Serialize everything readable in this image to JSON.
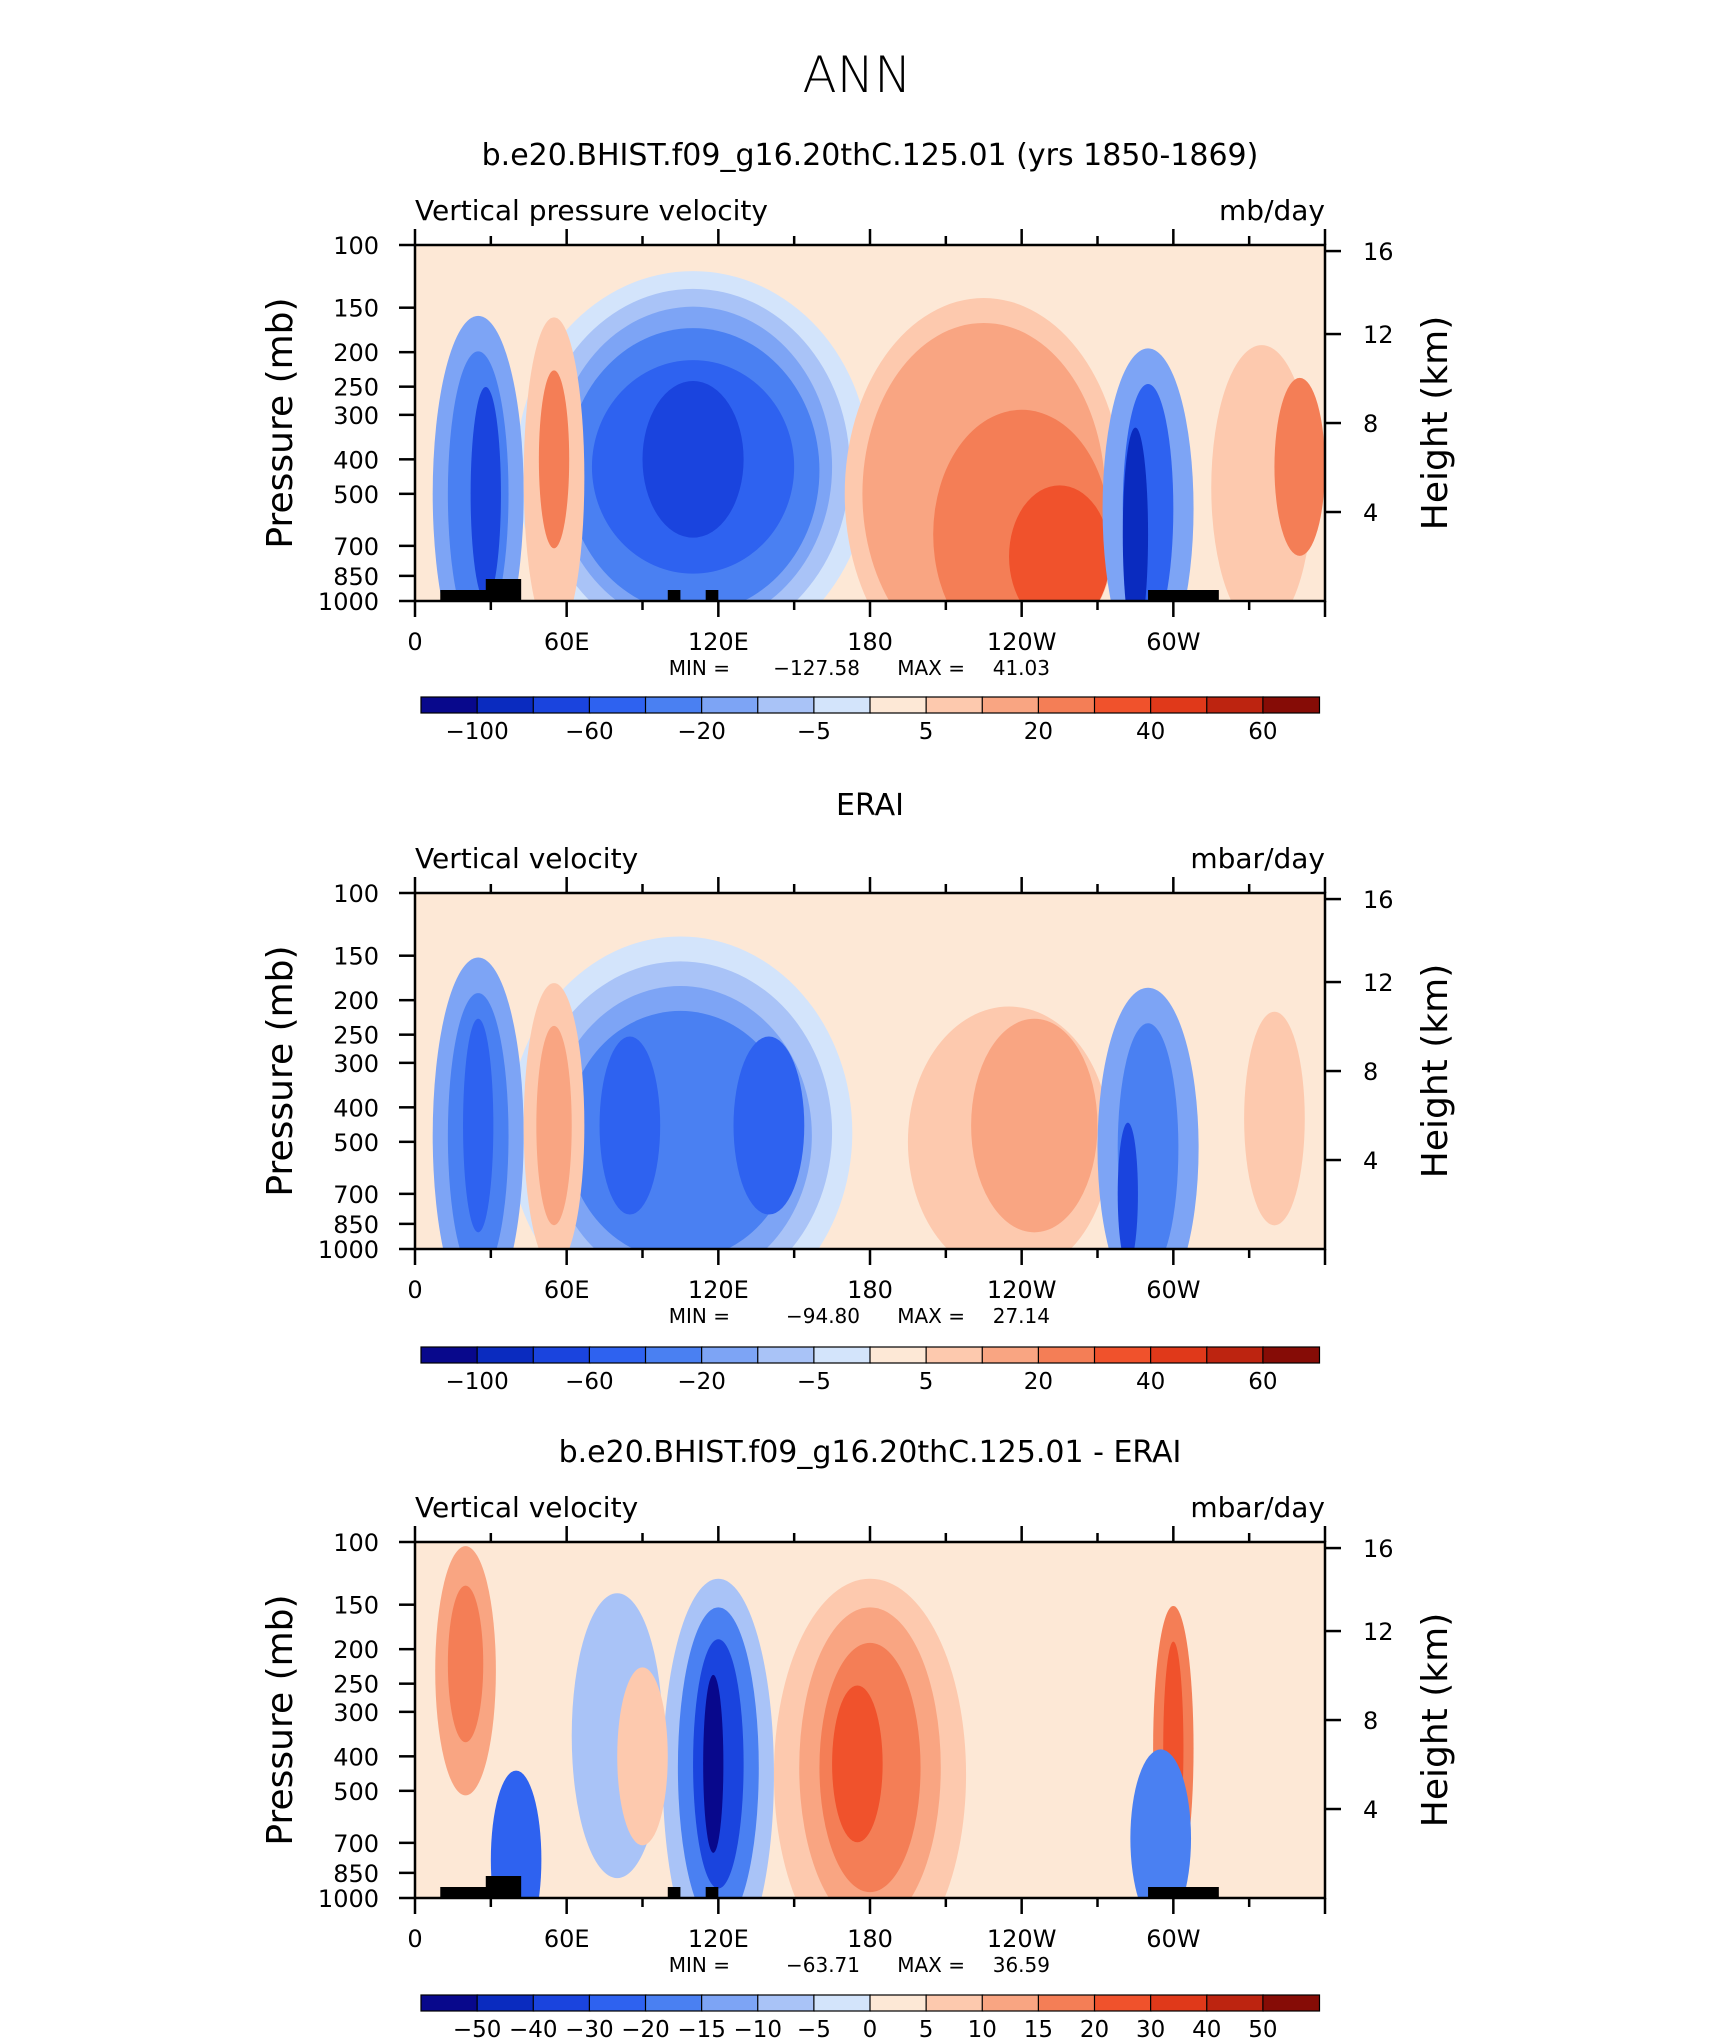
{
  "figure": {
    "title": "ANN"
  },
  "colors": {
    "seasonal_scale": [
      "#08088c",
      "#0a2bbf",
      "#1a44de",
      "#2e62f0",
      "#4a80f2",
      "#7da4f5",
      "#a9c3f7",
      "#d3e4fb",
      "#fde8d6",
      "#fdc9ae",
      "#f9a582",
      "#f47e56",
      "#f0522c",
      "#e0391a",
      "#bd2410",
      "#860c06"
    ],
    "difference_scale": [
      "#08088c",
      "#0a2bbf",
      "#1a44de",
      "#2e62f0",
      "#4a80f2",
      "#7da4f5",
      "#a9c3f7",
      "#d3e4fb",
      "#fde8d6",
      "#fdc9ae",
      "#f9a582",
      "#f47e56",
      "#f0522c",
      "#e0391a",
      "#bd2410",
      "#860c06"
    ],
    "topography": "#000000"
  },
  "chart_data": [
    {
      "type": "heatmap",
      "title": "b.e20.BHIST.f09_g16.20thC.125.01 (yrs 1850-1869)",
      "variable_label": "Vertical pressure velocity",
      "units_label": "mb/day",
      "ylabel": "Pressure (mb)",
      "y2label": "Height (km)",
      "x_ticks": [
        "0",
        "60E",
        "120E",
        "180",
        "120W",
        "60W"
      ],
      "y_ticks": [
        "100",
        "150",
        "200",
        "250",
        "300",
        "400",
        "500",
        "700",
        "850",
        "1000"
      ],
      "y2_ticks": [
        "16",
        "12",
        "8",
        "4"
      ],
      "stats": {
        "min_label": "MIN =",
        "min": "−127.58",
        "max_label": "MAX =",
        "max": "41.03"
      },
      "colorbar_labels": [
        "−100",
        "−60",
        "−20",
        "−5",
        "5",
        "20",
        "40",
        "60"
      ],
      "dataset": "model"
    },
    {
      "type": "heatmap",
      "title": "ERAI",
      "variable_label": "Vertical velocity",
      "units_label": "mbar/day",
      "ylabel": "Pressure (mb)",
      "y2label": "Height (km)",
      "x_ticks": [
        "0",
        "60E",
        "120E",
        "180",
        "120W",
        "60W"
      ],
      "y_ticks": [
        "100",
        "150",
        "200",
        "250",
        "300",
        "400",
        "500",
        "700",
        "850",
        "1000"
      ],
      "y2_ticks": [
        "16",
        "12",
        "8",
        "4"
      ],
      "stats": {
        "min_label": "MIN =",
        "min": "−94.80",
        "max_label": "MAX =",
        "max": "27.14"
      },
      "colorbar_labels": [
        "−100",
        "−60",
        "−20",
        "−5",
        "5",
        "20",
        "40",
        "60"
      ],
      "dataset": "obs"
    },
    {
      "type": "heatmap",
      "title": "b.e20.BHIST.f09_g16.20thC.125.01 - ERAI",
      "variable_label": "Vertical velocity",
      "units_label": "mbar/day",
      "ylabel": "Pressure (mb)",
      "y2label": "Height (km)",
      "x_ticks": [
        "0",
        "60E",
        "120E",
        "180",
        "120W",
        "60W"
      ],
      "y_ticks": [
        "100",
        "150",
        "200",
        "250",
        "300",
        "400",
        "500",
        "700",
        "850",
        "1000"
      ],
      "y2_ticks": [
        "16",
        "12",
        "8",
        "4"
      ],
      "stats": {
        "min_label": "MIN =",
        "min": "−63.71",
        "max_label": "MAX =",
        "max": "36.59"
      },
      "colorbar_labels": [
        "−50",
        "−40",
        "−30",
        "−20",
        "−15",
        "−10",
        "−5",
        "0",
        "5",
        "10",
        "15",
        "20",
        "30",
        "40",
        "50"
      ],
      "dataset": "diff"
    }
  ]
}
